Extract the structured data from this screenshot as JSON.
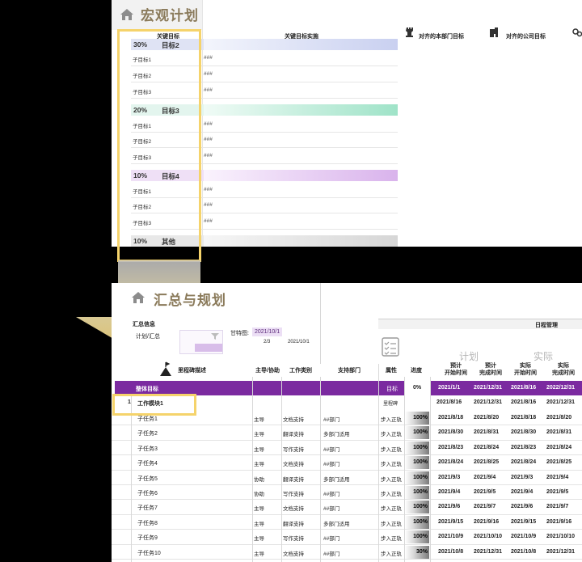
{
  "top": {
    "title": "宏观计划",
    "headers": {
      "key_goal": "关键目标",
      "key_goal_impl": "关键目标实施",
      "dept_goal": "对齐的本部门目标",
      "company_goal": "对齐的公司目标"
    },
    "goals": [
      {
        "pct": "30%",
        "name": "目标2",
        "color": "#c9d0f0",
        "subs": [
          "子目标1",
          "子目标2",
          "子目标3"
        ]
      },
      {
        "pct": "20%",
        "name": "目标3",
        "color": "#9fe3c8",
        "subs": [
          "子目标1",
          "子目标2",
          "子目标3"
        ]
      },
      {
        "pct": "10%",
        "name": "目标4",
        "color": "#d9b3ec",
        "subs": [
          "子目标1",
          "子目标2",
          "子目标3"
        ]
      }
    ],
    "other": {
      "pct": "10%",
      "name": "其他"
    },
    "hash": "###"
  },
  "bottom": {
    "title": "汇总与规划",
    "summary": {
      "label": "汇总信息",
      "sub": "计划/汇总",
      "gantt_label": "甘特图:",
      "gantt_value": "2021/10/1",
      "faint1": "2/3",
      "faint2": "2021/10/1"
    },
    "schedule_header": "日程管理",
    "plan_label": "计划",
    "actual_label": "实际",
    "columns": {
      "milestone": "里程碑描述",
      "owner": "主导/协助",
      "type": "工作类别",
      "dept": "支持部门",
      "attr": "属性",
      "progress": "进度",
      "plan_start": "预计\n开始时间",
      "plan_end": "预计\n完成时间",
      "act_start": "实际\n开始时间",
      "act_end": "实际\n完成时间"
    },
    "overall": {
      "name": "整体目标",
      "attr": "目标",
      "progress": "0%",
      "plan_start": "2021/1/1",
      "plan_end": "2021/12/31",
      "act_start": "2021/8/16",
      "act_end": "2022/12/31"
    },
    "module": {
      "num": "1",
      "name": "工作模块1",
      "attr": "里程碑",
      "plan_start": "2021/8/16",
      "plan_end": "2021/12/31",
      "act_start": "2021/8/16",
      "act_end": "2021/12/31"
    },
    "tasks": [
      {
        "name": "子任务1",
        "owner": "主导",
        "type": "文档支持",
        "dept": "##部门",
        "attr": "步入正轨",
        "progress": "100%",
        "ps": "2021/8/18",
        "pe": "2021/8/20",
        "as": "2021/8/18",
        "ae": "2021/8/20"
      },
      {
        "name": "子任务2",
        "owner": "主导",
        "type": "翻译支持",
        "dept": "多部门适用",
        "attr": "步入正轨",
        "progress": "100%",
        "ps": "2021/8/30",
        "pe": "2021/8/31",
        "as": "2021/8/30",
        "ae": "2021/8/31"
      },
      {
        "name": "子任务3",
        "owner": "主导",
        "type": "写作支持",
        "dept": "##部门",
        "attr": "步入正轨",
        "progress": "100%",
        "ps": "2021/8/23",
        "pe": "2021/8/24",
        "as": "2021/8/23",
        "ae": "2021/8/24"
      },
      {
        "name": "子任务4",
        "owner": "主导",
        "type": "文档支持",
        "dept": "##部门",
        "attr": "步入正轨",
        "progress": "100%",
        "ps": "2021/8/24",
        "pe": "2021/8/25",
        "as": "2021/8/24",
        "ae": "2021/8/25"
      },
      {
        "name": "子任务5",
        "owner": "协助",
        "type": "翻译支持",
        "dept": "多部门适用",
        "attr": "步入正轨",
        "progress": "100%",
        "ps": "2021/9/3",
        "pe": "2021/9/4",
        "as": "2021/9/3",
        "ae": "2021/9/4"
      },
      {
        "name": "子任务6",
        "owner": "协助",
        "type": "写作支持",
        "dept": "##部门",
        "attr": "步入正轨",
        "progress": "100%",
        "ps": "2021/9/4",
        "pe": "2021/9/5",
        "as": "2021/9/4",
        "ae": "2021/9/5"
      },
      {
        "name": "子任务7",
        "owner": "主导",
        "type": "文档支持",
        "dept": "##部门",
        "attr": "步入正轨",
        "progress": "100%",
        "ps": "2021/9/6",
        "pe": "2021/9/7",
        "as": "2021/9/6",
        "ae": "2021/9/7"
      },
      {
        "name": "子任务8",
        "owner": "主导",
        "type": "翻译支持",
        "dept": "多部门适用",
        "attr": "步入正轨",
        "progress": "100%",
        "ps": "2021/9/15",
        "pe": "2021/9/16",
        "as": "2021/9/15",
        "ae": "2021/9/16"
      },
      {
        "name": "子任务9",
        "owner": "主导",
        "type": "写作支持",
        "dept": "##部门",
        "attr": "步入正轨",
        "progress": "100%",
        "ps": "2021/10/9",
        "pe": "2021/10/10",
        "as": "2021/10/9",
        "ae": "2021/10/10"
      },
      {
        "name": "子任务10",
        "owner": "主导",
        "type": "文档支持",
        "dept": "##部门",
        "attr": "步入正轨",
        "progress": "30%",
        "ps": "2021/10/8",
        "pe": "2021/12/31",
        "as": "2021/10/8",
        "ae": "2021/12/31"
      }
    ],
    "colors": {
      "purple": "#7b2aa0",
      "yellow": "#f5d36b",
      "title_gold": "#8a7a5a"
    }
  }
}
